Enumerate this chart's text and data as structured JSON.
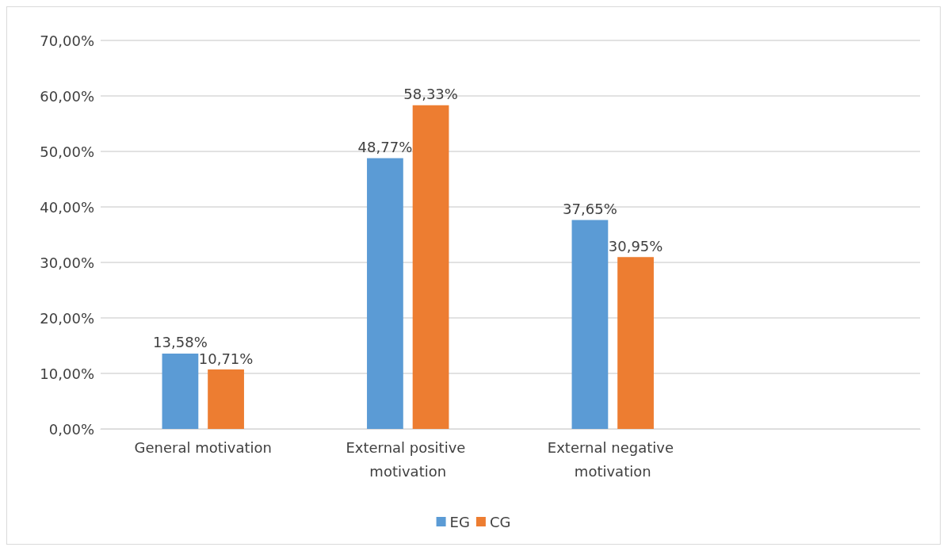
{
  "chart_data": {
    "type": "bar",
    "categories": [
      "General motivation",
      "External positive motivation",
      "External negative motivation",
      null
    ],
    "series": [
      {
        "name": "EG",
        "color": "#5b9bd5",
        "values": [
          13.58,
          48.77,
          37.65,
          null
        ],
        "value_labels": [
          "13,58%",
          "48,77%",
          "37,65%",
          null
        ]
      },
      {
        "name": "CG",
        "color": "#ed7d31",
        "values": [
          10.71,
          58.33,
          30.95,
          null
        ],
        "value_labels": [
          "10,71%",
          "58,33%",
          "30,95%",
          null
        ]
      }
    ],
    "ylim": [
      0,
      70
    ],
    "yticks": [
      {
        "value": 0,
        "label": "0,00%"
      },
      {
        "value": 10,
        "label": "10,00%"
      },
      {
        "value": 20,
        "label": "20,00%"
      },
      {
        "value": 30,
        "label": "30,00%"
      },
      {
        "value": 40,
        "label": "40,00%"
      },
      {
        "value": 50,
        "label": "50,00%"
      },
      {
        "value": 60,
        "label": "60,00%"
      },
      {
        "value": 70,
        "label": "70,00%"
      }
    ],
    "grid": "y",
    "legend": "bottom"
  }
}
